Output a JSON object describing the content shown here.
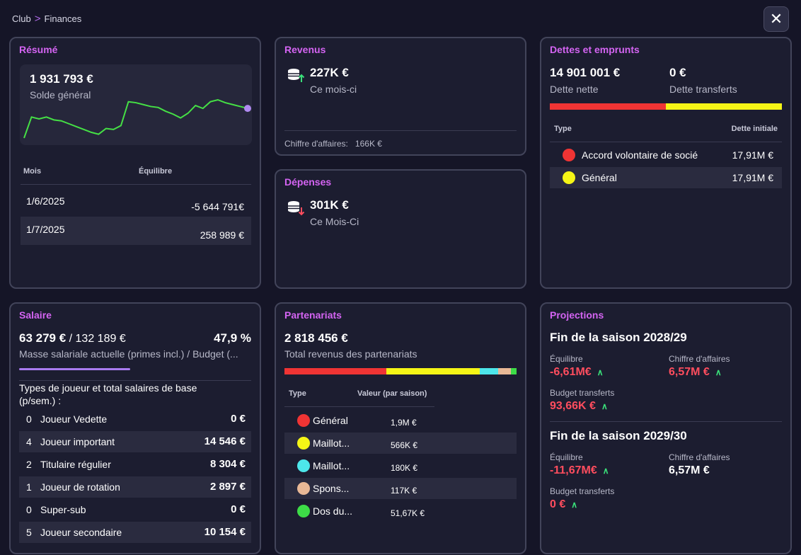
{
  "breadcrumb": {
    "root": "Club",
    "current": "Finances"
  },
  "close_label": "✕",
  "resume": {
    "title": "Résumé",
    "balance": "1 931 793 €",
    "balance_label": "Solde général",
    "col_month": "Mois",
    "col_balance": "Équilibre",
    "rows": [
      {
        "month": "1/6/2025",
        "value": "-5 644 791€"
      },
      {
        "month": "1/7/2025",
        "value": "258 989 €"
      }
    ],
    "chart_data": {
      "type": "line",
      "title": "",
      "xlabel": "",
      "ylabel": "",
      "note": "Sparkline of overall balance trend, values estimated (unitless relative)",
      "values": [
        20,
        42,
        40,
        42,
        39,
        38,
        35,
        32,
        29,
        26,
        24,
        30,
        29,
        33,
        58,
        57,
        55,
        53,
        52,
        48,
        45,
        41,
        46,
        54,
        51,
        58,
        60,
        57,
        55,
        53,
        51
      ]
    }
  },
  "revenus": {
    "title": "Revenus",
    "amount": "227K €",
    "period": "Ce mois-ci",
    "ca_label": "Chiffre d'affaires:",
    "ca_value": "166K €"
  },
  "depenses": {
    "title": "Dépenses",
    "amount": "301K €",
    "period": "Ce Mois-Ci"
  },
  "dettes": {
    "title": "Dettes et emprunts",
    "net": "14 901 001 €",
    "net_label": "Dette nette",
    "transfer": "0 €",
    "transfer_label": "Dette transferts",
    "bar": [
      {
        "share": 0.5,
        "color": "#f03434"
      },
      {
        "share": 0.5,
        "color": "#f5f516"
      }
    ],
    "col_type": "Type",
    "col_initial": "Dette initiale",
    "rows": [
      {
        "label": "Accord volontaire de socié",
        "value": "17,91M €",
        "color": "#f03434"
      },
      {
        "label": "Général",
        "value": "17,91M €",
        "color": "#f5f516"
      }
    ]
  },
  "salaire": {
    "title": "Salaire",
    "current": "63 279 €",
    "budget": "/ 132 189 €",
    "percent": "47,9 %",
    "percent_value": 0.479,
    "desc": "Masse salariale actuelle (primes incl.) / Budget (...",
    "types_label": "Types de joueur et total salaires de base (p/sem.) :",
    "rows": [
      {
        "count": "0",
        "label": "Joueur Vedette",
        "value": "0 €"
      },
      {
        "count": "4",
        "label": "Joueur important",
        "value": "14 546 €"
      },
      {
        "count": "2",
        "label": "Titulaire régulier",
        "value": "8 304 €"
      },
      {
        "count": "1",
        "label": "Joueur de rotation",
        "value": "2 897 €"
      },
      {
        "count": "0",
        "label": "Super-sub",
        "value": "0 €"
      },
      {
        "count": "5",
        "label": "Joueur secondaire",
        "value": "10 154 €"
      }
    ]
  },
  "partenariats": {
    "title": "Partenariats",
    "total": "2 818 456 €",
    "total_label": "Total revenus des partenariats",
    "bar": [
      {
        "share": 0.44,
        "color": "#f03434"
      },
      {
        "share": 0.4,
        "color": "#f5f516"
      },
      {
        "share": 0.08,
        "color": "#4de6ea"
      },
      {
        "share": 0.055,
        "color": "#e8b896"
      },
      {
        "share": 0.025,
        "color": "#3ddc47"
      }
    ],
    "col_type": "Type",
    "col_value": "Valeur (par saison)",
    "rows": [
      {
        "label": "Général",
        "value": "1,9M €",
        "color": "#f03434"
      },
      {
        "label": "Maillot...",
        "value": "566K €",
        "color": "#f5f516"
      },
      {
        "label": "Maillot...",
        "value": "180K €",
        "color": "#4de6ea"
      },
      {
        "label": "Spons...",
        "value": "117K €",
        "color": "#e8b896"
      },
      {
        "label": "Dos du...",
        "value": "51,67K €",
        "color": "#3ddc47"
      }
    ]
  },
  "projections": {
    "title": "Projections",
    "seasons": [
      {
        "heading": "Fin de la saison 2028/29",
        "balance_label": "Équilibre",
        "balance": "-6,61M€",
        "ca_label": "Chiffre d'affaires",
        "ca": "6,57M €",
        "transfer_label": "Budget transferts",
        "transfer": "93,66K €"
      },
      {
        "heading": "Fin de la saison 2029/30",
        "balance_label": "Équilibre",
        "balance": "-11,67M€",
        "ca_label": "Chiffre d'affaires",
        "ca": "6,57M €",
        "transfer_label": "Budget transferts",
        "transfer": "0 €"
      }
    ]
  }
}
